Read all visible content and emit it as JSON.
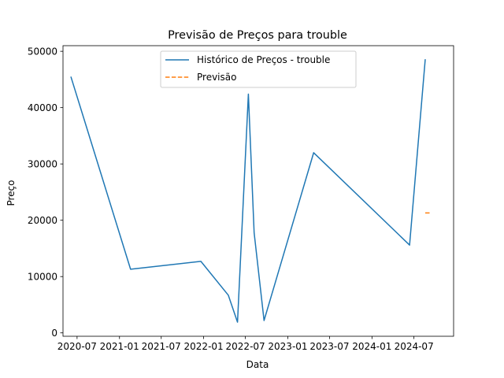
{
  "chart_data": {
    "type": "line",
    "title": "Previsão de Preços para trouble",
    "xlabel": "Data",
    "ylabel": "Preço",
    "xlim": [
      "2020-05-01",
      "2024-12-20"
    ],
    "ylim": [
      -600,
      51000
    ],
    "x_ticks": [
      {
        "date": "2020-07-01",
        "label": "2020-07"
      },
      {
        "date": "2021-01-01",
        "label": "2021-01"
      },
      {
        "date": "2021-07-01",
        "label": "2021-07"
      },
      {
        "date": "2022-01-01",
        "label": "2022-01"
      },
      {
        "date": "2022-07-01",
        "label": "2022-07"
      },
      {
        "date": "2023-01-01",
        "label": "2023-01"
      },
      {
        "date": "2023-07-01",
        "label": "2023-07"
      },
      {
        "date": "2024-01-01",
        "label": "2024-01"
      },
      {
        "date": "2024-07-01",
        "label": "2024-07"
      }
    ],
    "y_ticks": [
      0,
      10000,
      20000,
      30000,
      40000,
      50000
    ],
    "y_tick_labels": [
      "0",
      "10000",
      "20000",
      "30000",
      "40000",
      "50000"
    ],
    "legend_position": "top-center",
    "grid": false,
    "series": [
      {
        "name": "Histórico de Preços - trouble",
        "color": "#1f77b4",
        "style": "solid",
        "x": [
          "2020-06-04",
          "2021-02-18",
          "2021-12-20",
          "2022-04-18",
          "2022-05-28",
          "2022-07-14",
          "2022-08-08",
          "2022-09-20",
          "2023-04-23",
          "2024-06-12",
          "2024-08-19"
        ],
        "y": [
          45500,
          11300,
          12700,
          6700,
          1900,
          42400,
          17800,
          2200,
          32000,
          15600,
          48600
        ]
      },
      {
        "name": "Previsão",
        "color": "#ff7f0e",
        "style": "dashed",
        "x": [
          "2024-08-19",
          "2024-09-13"
        ],
        "y": [
          21300,
          21300
        ]
      }
    ]
  }
}
